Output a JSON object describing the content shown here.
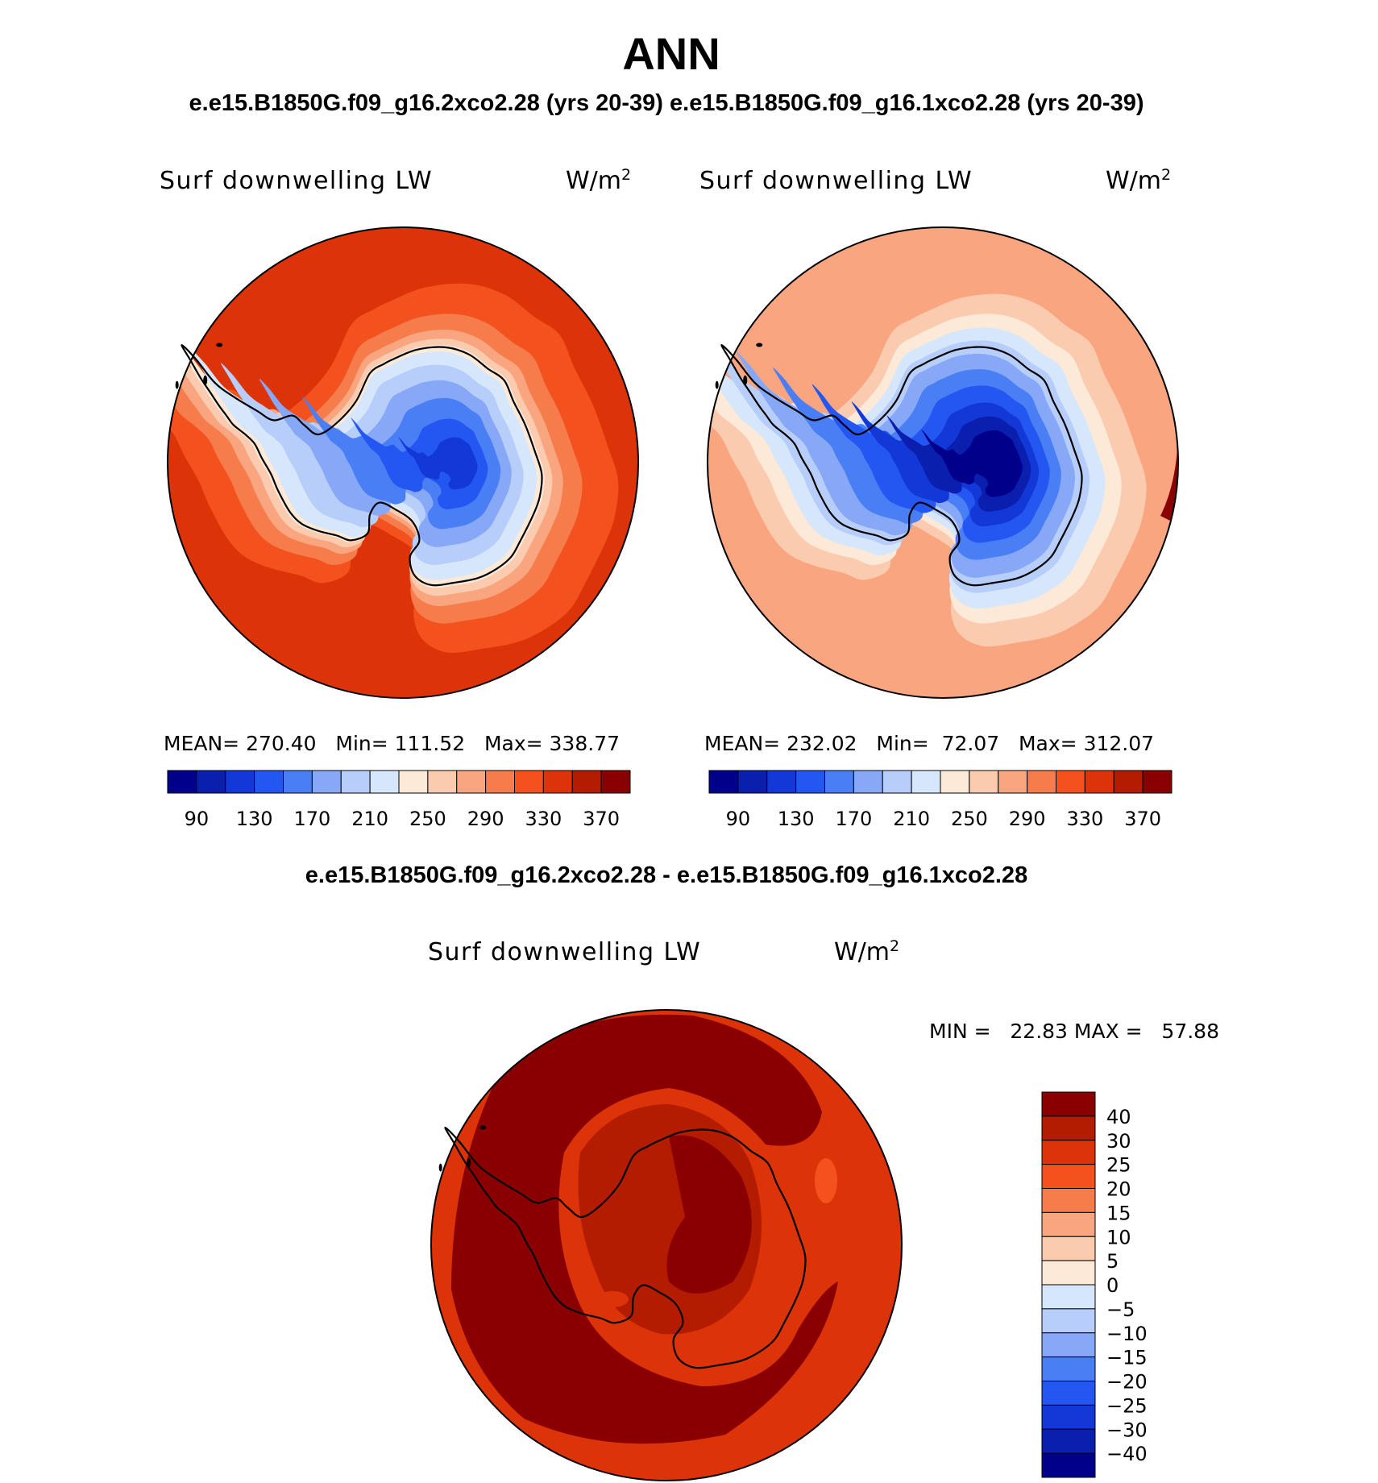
{
  "figure": {
    "title": "ANN",
    "subtitle": "e.e15.B1850G.f09_g16.2xco2.28 (yrs 20-39) e.e15.B1850G.f09_g16.1xco2.28 (yrs 20-39)",
    "diff_title": "e.e15.B1850G.f09_g16.2xco2.28 - e.e15.B1850G.f09_g16.1xco2.28"
  },
  "panels": [
    {
      "id": "2xco2",
      "variable": "Surf downwelling LW",
      "units_base": "W/m",
      "units_exp": "2",
      "stats": "MEAN= 270.40   Min= 111.52   Max= 338.77",
      "colorbar_ticks": [
        "90",
        "130",
        "170",
        "210",
        "250",
        "290",
        "330",
        "370"
      ]
    },
    {
      "id": "1xco2",
      "variable": "Surf downwelling LW",
      "units_base": "W/m",
      "units_exp": "2",
      "stats": "MEAN= 232.02   Min=  72.07   Max= 312.07",
      "colorbar_ticks": [
        "90",
        "130",
        "170",
        "210",
        "250",
        "290",
        "330",
        "370"
      ]
    },
    {
      "id": "diff",
      "variable": "Surf downwelling LW",
      "units_base": "W/m",
      "units_exp": "2",
      "stats": "MIN =   22.83 MAX =   57.88",
      "colorbar_ticks": [
        "40",
        "30",
        "25",
        "20",
        "15",
        "10",
        "5",
        "0",
        "−5",
        "−10",
        "−15",
        "−20",
        "−25",
        "−30",
        "−40"
      ]
    }
  ],
  "chart_data": {
    "type": "polar-stereographic-contour",
    "region": "Southern Hemisphere (Antarctica)",
    "season": "ANN",
    "variable": "Surf downwelling LW",
    "units": "W/m²",
    "abs_colorbar_levels": [
      90,
      130,
      170,
      210,
      250,
      290,
      330,
      370
    ],
    "diff_colorbar_levels": [
      40,
      30,
      25,
      20,
      15,
      10,
      5,
      0,
      -5,
      -10,
      -15,
      -20,
      -25,
      -30,
      -40
    ],
    "series": [
      {
        "name": "e.e15.B1850G.f09_g16.2xco2.28 (yrs 20-39)",
        "mean": 270.4,
        "min": 111.52,
        "max": 338.77
      },
      {
        "name": "e.e15.B1850G.f09_g16.1xco2.28 (yrs 20-39)",
        "mean": 232.02,
        "min": 72.07,
        "max": 312.07
      },
      {
        "name": "difference",
        "min": 22.83,
        "max": 57.88
      }
    ],
    "palette": {
      "abs": [
        "#00008b",
        "#0a1fae",
        "#1238d8",
        "#2457f2",
        "#4a7ef5",
        "#86a8f7",
        "#b7cdfa",
        "#d7e7fb",
        "#fde9d8",
        "#fbcbb0",
        "#f9a57f",
        "#f77c4c",
        "#f3521e",
        "#dd3308",
        "#b41c02",
        "#8a0000"
      ],
      "diff": [
        "#8a0000",
        "#b41c02",
        "#dd3308",
        "#f3521e",
        "#f77c4c",
        "#f9a57f",
        "#fbcbb0",
        "#fde9d8",
        "#d7e7fb",
        "#b7cdfa",
        "#86a8f7",
        "#4a7ef5",
        "#2457f2",
        "#1238d8",
        "#0a1fae",
        "#00008b"
      ]
    }
  }
}
